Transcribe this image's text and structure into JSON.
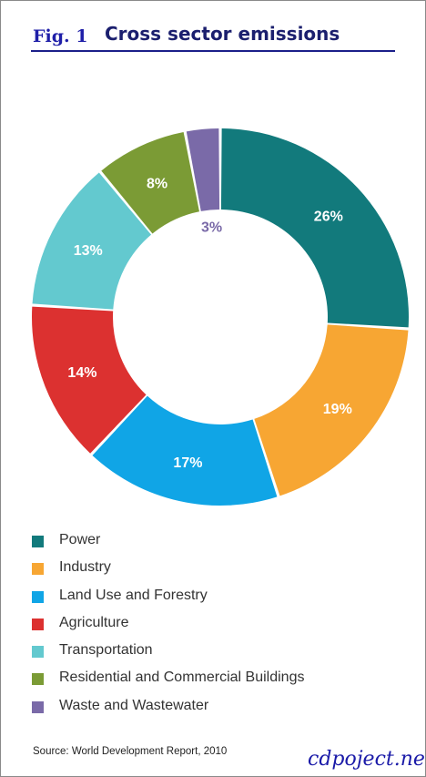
{
  "header": {
    "fig_label": "Fig. 1",
    "title": "Cross sector emissions"
  },
  "chart_data": {
    "type": "pie",
    "style": "donut",
    "title": "Cross sector emissions",
    "categories": [
      "Power",
      "Industry",
      "Land Use and Forestry",
      "Agriculture",
      "Transportation",
      "Residential and Commercial Buildings",
      "Waste and Wastewater"
    ],
    "values": [
      26,
      19,
      17,
      14,
      13,
      8,
      3
    ],
    "labels": [
      "26%",
      "19%",
      "17%",
      "14%",
      "13%",
      "8%",
      "3%"
    ],
    "colors": [
      "#127a7c",
      "#f7a633",
      "#10a5e6",
      "#dc3130",
      "#63c9cf",
      "#7b9b35",
      "#7a6aa8"
    ],
    "legend_placement": "bottom"
  },
  "footer": {
    "source": "Source: World Development Report, 2010",
    "watermark": "cdpoject.net"
  }
}
